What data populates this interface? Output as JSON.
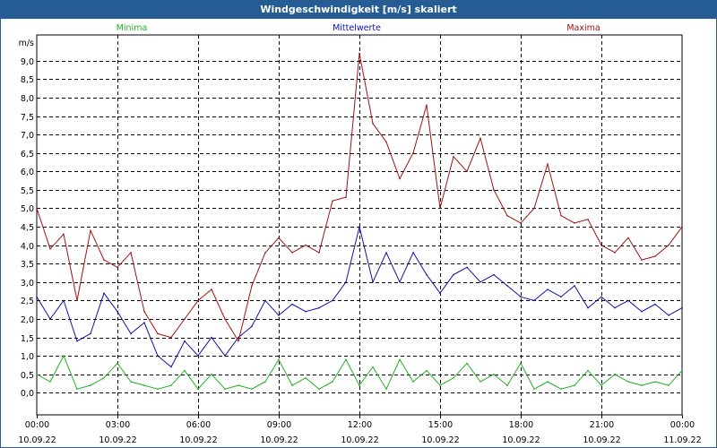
{
  "window": {
    "title": "Windgeschwindigkeit [m/s] skaliert"
  },
  "chart_data": {
    "type": "line",
    "title": "Windgeschwindigkeit [m/s] skaliert",
    "ylabel": "m/s",
    "xlabel": "",
    "ylim": [
      -0.6,
      9.7
    ],
    "xlim": [
      0,
      24
    ],
    "grid": true,
    "legend_placement": "top",
    "y_ticks": [
      "0,0",
      "0,5",
      "1,0",
      "1,5",
      "2,0",
      "2,5",
      "3,0",
      "3,5",
      "4,0",
      "4,5",
      "5,0",
      "5,5",
      "6,0",
      "6,5",
      "7,0",
      "7,5",
      "8,0",
      "8,5",
      "9,0"
    ],
    "y_tick_values": [
      0,
      0.5,
      1,
      1.5,
      2,
      2.5,
      3,
      3.5,
      4,
      4.5,
      5,
      5.5,
      6,
      6.5,
      7,
      7.5,
      8,
      8.5,
      9
    ],
    "x_ticks": [
      {
        "time": "00:00",
        "date": "10.09.22",
        "hour": 0
      },
      {
        "time": "03:00",
        "date": "10.09.22",
        "hour": 3
      },
      {
        "time": "06:00",
        "date": "10.09.22",
        "hour": 6
      },
      {
        "time": "09:00",
        "date": "10.09.22",
        "hour": 9
      },
      {
        "time": "12:00",
        "date": "10.09.22",
        "hour": 12
      },
      {
        "time": "15:00",
        "date": "10.09.22",
        "hour": 15
      },
      {
        "time": "18:00",
        "date": "10.09.22",
        "hour": 18
      },
      {
        "time": "21:00",
        "date": "10.09.22",
        "hour": 21
      },
      {
        "time": "00:00",
        "date": "11.09.22",
        "hour": 24
      }
    ],
    "series": [
      {
        "name": "Minima",
        "color": "#1fb01f",
        "x": [
          0,
          0.5,
          1,
          1.5,
          2,
          2.5,
          3,
          3.5,
          4,
          4.5,
          5,
          5.5,
          6,
          6.5,
          7,
          7.5,
          8,
          8.5,
          9,
          9.5,
          10,
          10.5,
          11,
          11.5,
          12,
          12.5,
          13,
          13.5,
          14,
          14.5,
          15,
          15.5,
          16,
          16.5,
          17,
          17.5,
          18,
          18.5,
          19,
          19.5,
          20,
          20.5,
          21,
          21.5,
          22,
          22.5,
          23,
          23.5,
          24
        ],
        "values": [
          0.5,
          0.3,
          1.0,
          0.1,
          0.2,
          0.4,
          0.8,
          0.3,
          0.2,
          0.1,
          0.2,
          0.6,
          0.1,
          0.5,
          0.1,
          0.2,
          0.1,
          0.3,
          0.9,
          0.2,
          0.4,
          0.1,
          0.3,
          0.9,
          0.2,
          0.7,
          0.1,
          0.9,
          0.3,
          0.6,
          0.2,
          0.4,
          0.8,
          0.3,
          0.5,
          0.2,
          0.8,
          0.1,
          0.3,
          0.1,
          0.2,
          0.6,
          0.2,
          0.5,
          0.3,
          0.2,
          0.3,
          0.2,
          0.6
        ]
      },
      {
        "name": "Mittelwerte",
        "color": "#1010a8",
        "x": [
          0,
          0.5,
          1,
          1.5,
          2,
          2.5,
          3,
          3.5,
          4,
          4.5,
          5,
          5.5,
          6,
          6.5,
          7,
          7.5,
          8,
          8.5,
          9,
          9.5,
          10,
          10.5,
          11,
          11.5,
          12,
          12.5,
          13,
          13.5,
          14,
          14.5,
          15,
          15.5,
          16,
          16.5,
          17,
          17.5,
          18,
          18.5,
          19,
          19.5,
          20,
          20.5,
          21,
          21.5,
          22,
          22.5,
          23,
          23.5,
          24
        ],
        "values": [
          2.6,
          2.0,
          2.5,
          1.4,
          1.6,
          2.7,
          2.2,
          1.6,
          1.9,
          1.0,
          0.7,
          1.4,
          1.0,
          1.5,
          1.0,
          1.5,
          1.8,
          2.5,
          2.1,
          2.4,
          2.2,
          2.3,
          2.5,
          3.0,
          4.5,
          3.0,
          3.8,
          3.0,
          3.8,
          3.2,
          2.7,
          3.2,
          3.4,
          3.0,
          3.2,
          2.9,
          2.6,
          2.5,
          2.8,
          2.6,
          2.9,
          2.3,
          2.6,
          2.3,
          2.5,
          2.2,
          2.4,
          2.1,
          2.3
        ]
      },
      {
        "name": "Maxima",
        "color": "#a01010",
        "x": [
          0,
          0.5,
          1,
          1.5,
          2,
          2.5,
          3,
          3.5,
          4,
          4.5,
          5,
          5.5,
          6,
          6.5,
          7,
          7.5,
          8,
          8.5,
          9,
          9.5,
          10,
          10.5,
          11,
          11.5,
          12,
          12.5,
          13,
          13.5,
          14,
          14.5,
          15,
          15.5,
          16,
          16.5,
          17,
          17.5,
          18,
          18.5,
          19,
          19.5,
          20,
          20.5,
          21,
          21.5,
          22,
          22.5,
          23,
          23.5,
          24
        ],
        "values": [
          5.0,
          3.9,
          4.3,
          2.5,
          4.4,
          3.6,
          3.4,
          3.8,
          2.2,
          1.6,
          1.5,
          2.0,
          2.5,
          2.8,
          2.0,
          1.4,
          2.9,
          3.8,
          4.2,
          3.8,
          4.0,
          3.8,
          5.2,
          5.3,
          9.2,
          7.3,
          6.8,
          5.8,
          6.5,
          7.8,
          5.0,
          6.4,
          6.0,
          6.9,
          5.5,
          4.8,
          4.6,
          5.0,
          6.2,
          4.8,
          4.6,
          4.7,
          4.0,
          3.8,
          4.2,
          3.6,
          3.7,
          4.0,
          4.5
        ]
      }
    ]
  }
}
